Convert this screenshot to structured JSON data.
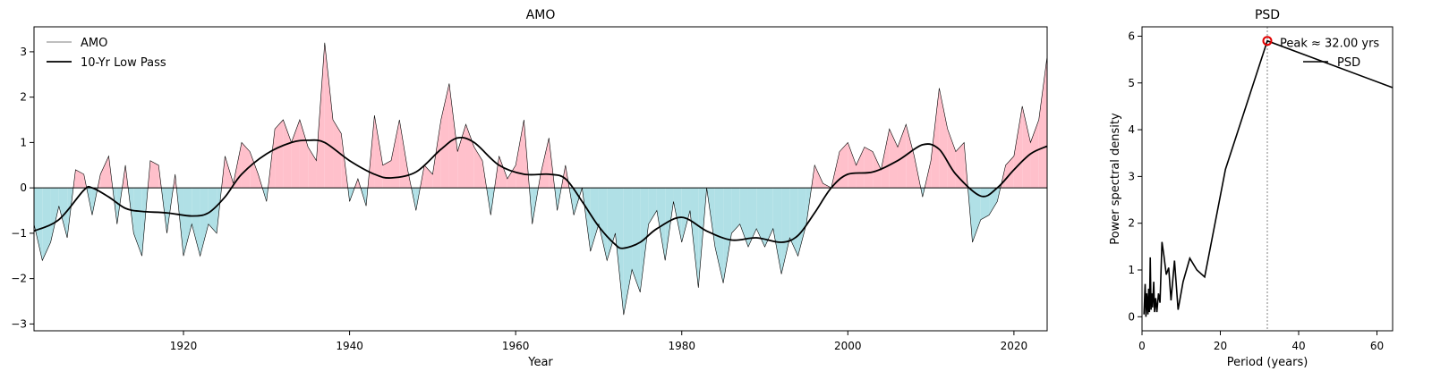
{
  "chart_data": [
    {
      "type": "area",
      "title": "AMO",
      "xlabel": "Year",
      "ylabel": "",
      "xlim": [
        1902,
        2024
      ],
      "ylim": [
        -3.15,
        3.55
      ],
      "xticks": [
        1920,
        1940,
        1960,
        1980,
        2000,
        2020
      ],
      "yticks": [
        -3,
        -2,
        -1,
        0,
        1,
        2,
        3
      ],
      "xtick_labels": [
        "1920",
        "1940",
        "1960",
        "1980",
        "2000",
        "2020"
      ],
      "ytick_labels": [
        "−3",
        "−2",
        "−1",
        "0",
        "1",
        "2",
        "3"
      ],
      "legend_position": "top-left",
      "fill_colors": {
        "positive": "#ffc0cb",
        "negative": "#b0e0e6"
      },
      "series": [
        {
          "name": "AMO",
          "style": "thin-line",
          "x": [
            1902,
            1903,
            1904,
            1905,
            1906,
            1907,
            1908,
            1909,
            1910,
            1911,
            1912,
            1913,
            1914,
            1915,
            1916,
            1917,
            1918,
            1919,
            1920,
            1921,
            1922,
            1923,
            1924,
            1925,
            1926,
            1927,
            1928,
            1929,
            1930,
            1931,
            1932,
            1933,
            1934,
            1935,
            1936,
            1937,
            1938,
            1939,
            1940,
            1941,
            1942,
            1943,
            1944,
            1945,
            1946,
            1947,
            1948,
            1949,
            1950,
            1951,
            1952,
            1953,
            1954,
            1955,
            1956,
            1957,
            1958,
            1959,
            1960,
            1961,
            1962,
            1963,
            1964,
            1965,
            1966,
            1967,
            1968,
            1969,
            1970,
            1971,
            1972,
            1973,
            1974,
            1975,
            1976,
            1977,
            1978,
            1979,
            1980,
            1981,
            1982,
            1983,
            1984,
            1985,
            1986,
            1987,
            1988,
            1989,
            1990,
            1991,
            1992,
            1993,
            1994,
            1995,
            1996,
            1997,
            1998,
            1999,
            2000,
            2001,
            2002,
            2003,
            2004,
            2005,
            2006,
            2007,
            2008,
            2009,
            2010,
            2011,
            2012,
            2013,
            2014,
            2015,
            2016,
            2017,
            2018,
            2019,
            2020,
            2021,
            2022,
            2023,
            2024
          ],
          "values": [
            -0.8,
            -1.6,
            -1.2,
            -0.4,
            -1.1,
            0.4,
            0.3,
            -0.6,
            0.3,
            0.7,
            -0.8,
            0.5,
            -1.0,
            -1.5,
            0.6,
            0.5,
            -1.0,
            0.3,
            -1.5,
            -0.8,
            -1.5,
            -0.8,
            -1.0,
            0.7,
            0.1,
            1.0,
            0.8,
            0.3,
            -0.3,
            1.3,
            1.5,
            1.0,
            1.5,
            0.9,
            0.6,
            3.2,
            1.5,
            1.2,
            -0.3,
            0.2,
            -0.4,
            1.6,
            0.5,
            0.6,
            1.5,
            0.4,
            -0.5,
            0.5,
            0.3,
            1.5,
            2.3,
            0.8,
            1.4,
            0.9,
            0.6,
            -0.6,
            0.7,
            0.2,
            0.5,
            1.5,
            -0.8,
            0.3,
            1.1,
            -0.5,
            0.5,
            -0.6,
            0.0,
            -1.4,
            -0.8,
            -1.6,
            -1.0,
            -2.8,
            -1.8,
            -2.3,
            -0.8,
            -0.5,
            -1.6,
            -0.3,
            -1.2,
            -0.5,
            -2.2,
            0.0,
            -1.3,
            -2.1,
            -1.0,
            -0.8,
            -1.3,
            -0.9,
            -1.3,
            -0.9,
            -1.9,
            -1.1,
            -1.5,
            -0.8,
            0.5,
            0.1,
            0.0,
            0.8,
            1.0,
            0.5,
            0.9,
            0.8,
            0.4,
            1.3,
            0.9,
            1.4,
            0.7,
            -0.2,
            0.6,
            2.2,
            1.3,
            0.8,
            1.0,
            -1.2,
            -0.7,
            -0.6,
            -0.3,
            0.5,
            0.7,
            1.8,
            1.0,
            1.5,
            2.9
          ]
        },
        {
          "name": "10-Yr Low Pass",
          "style": "thick-line",
          "x": [
            1902,
            1905,
            1908,
            1909,
            1911,
            1913,
            1915,
            1918,
            1921,
            1923,
            1925,
            1927,
            1930,
            1933,
            1935,
            1937,
            1940,
            1943,
            1945,
            1948,
            1951,
            1953,
            1955,
            1958,
            1961,
            1964,
            1966,
            1968,
            1970,
            1972,
            1973,
            1975,
            1977,
            1980,
            1983,
            1986,
            1989,
            1992,
            1994,
            1996,
            1998,
            2000,
            2003,
            2006,
            2009,
            2011,
            2013,
            2016,
            2018,
            2020,
            2022,
            2024
          ],
          "values": [
            -0.95,
            -0.7,
            -0.05,
            0.0,
            -0.2,
            -0.45,
            -0.52,
            -0.55,
            -0.62,
            -0.55,
            -0.2,
            0.3,
            0.75,
            1.0,
            1.05,
            1.0,
            0.6,
            0.3,
            0.22,
            0.35,
            0.85,
            1.1,
            1.0,
            0.5,
            0.3,
            0.3,
            0.2,
            -0.3,
            -0.85,
            -1.25,
            -1.33,
            -1.2,
            -0.9,
            -0.65,
            -0.95,
            -1.15,
            -1.1,
            -1.2,
            -1.05,
            -0.55,
            0.0,
            0.3,
            0.35,
            0.6,
            0.95,
            0.85,
            0.3,
            -0.18,
            0.0,
            0.4,
            0.75,
            0.92
          ]
        }
      ]
    },
    {
      "type": "line",
      "title": "PSD",
      "xlabel": "Period (years)",
      "ylabel": "Power spectral density",
      "xlim": [
        0,
        64
      ],
      "ylim": [
        -0.3,
        6.2
      ],
      "xticks": [
        0,
        20,
        40,
        60
      ],
      "yticks": [
        0,
        1,
        2,
        3,
        4,
        5,
        6
      ],
      "xtick_labels": [
        "0",
        "20",
        "40",
        "60"
      ],
      "ytick_labels": [
        "0",
        "1",
        "2",
        "3",
        "4",
        "5",
        "6"
      ],
      "legend_position": "top-right",
      "peak": {
        "x": 32.0,
        "y": 5.9,
        "label": "Peak ≈ 32.00 yrs"
      },
      "series": [
        {
          "name": "PSD",
          "x": [
            0.5,
            0.8,
            1.0,
            1.2,
            1.5,
            1.7,
            1.9,
            2.1,
            2.3,
            2.5,
            2.7,
            3.0,
            3.2,
            3.5,
            3.8,
            4.2,
            4.6,
            5.1,
            5.6,
            6.2,
            6.8,
            7.4,
            8.3,
            9.2,
            10.5,
            12.2,
            14.0,
            16.0,
            21.3,
            32.0,
            64.0
          ],
          "values": [
            0.05,
            0.7,
            0.0,
            0.5,
            0.05,
            0.6,
            0.1,
            1.27,
            0.15,
            0.5,
            0.2,
            0.75,
            0.1,
            0.4,
            0.1,
            0.5,
            0.3,
            1.6,
            1.3,
            0.9,
            1.05,
            0.35,
            1.2,
            0.15,
            0.75,
            1.25,
            1.0,
            0.85,
            3.15,
            5.9,
            4.9
          ]
        }
      ]
    }
  ]
}
